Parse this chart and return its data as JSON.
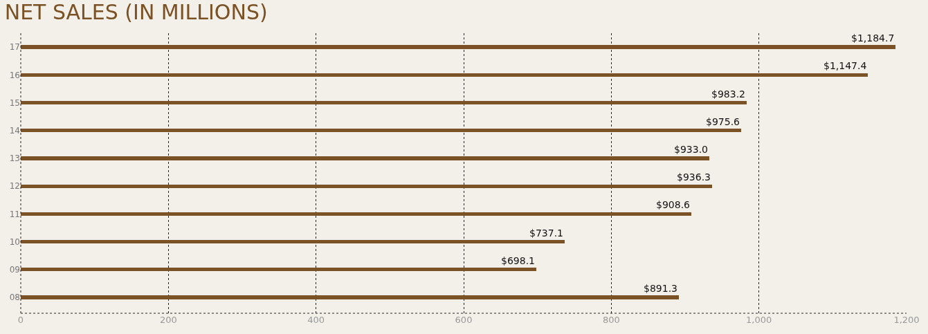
{
  "chart_data": {
    "type": "bar",
    "orientation": "horizontal",
    "title": "NET SALES (IN MILLIONS)",
    "categories": [
      "17",
      "16",
      "15",
      "14",
      "13",
      "12",
      "11",
      "10",
      "09",
      "08"
    ],
    "values": [
      1184.7,
      1147.4,
      983.2,
      975.6,
      933.0,
      936.3,
      908.6,
      737.1,
      698.1,
      891.3
    ],
    "value_labels": [
      "$1,184.7",
      "$1,147.4",
      "$983.2",
      "$975.6",
      "$933.0",
      "$936.3",
      "$908.6",
      "$737.1",
      "$698.1",
      "$891.3"
    ],
    "color": "#7a5225",
    "xlim": [
      0,
      1200
    ],
    "xticks": [
      0,
      200,
      400,
      600,
      800,
      {
        "value": 1000,
        "label": "1,000"
      },
      {
        "value": 1200,
        "label": "1,200"
      }
    ],
    "grid": "x",
    "legend": false
  }
}
